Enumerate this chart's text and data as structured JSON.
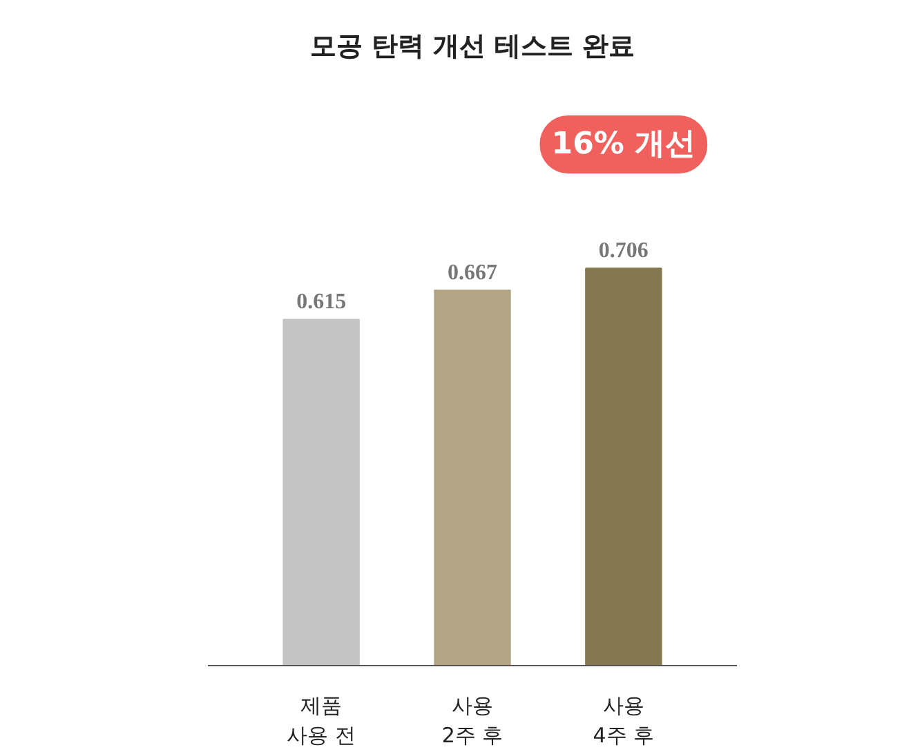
{
  "chart_data": {
    "type": "bar",
    "title": "모공 탄력 개선 테스트 완료",
    "categories": [
      "제품\n사용 전",
      "사용\n2주 후",
      "사용\n4주 후"
    ],
    "values": [
      0.615,
      0.667,
      0.706
    ],
    "colors": [
      "#c4c4c4",
      "#b3a585",
      "#857850"
    ],
    "tick_labels": "x",
    "data_labels": true,
    "grid": false,
    "annotations": [
      "16% 개선"
    ]
  }
}
